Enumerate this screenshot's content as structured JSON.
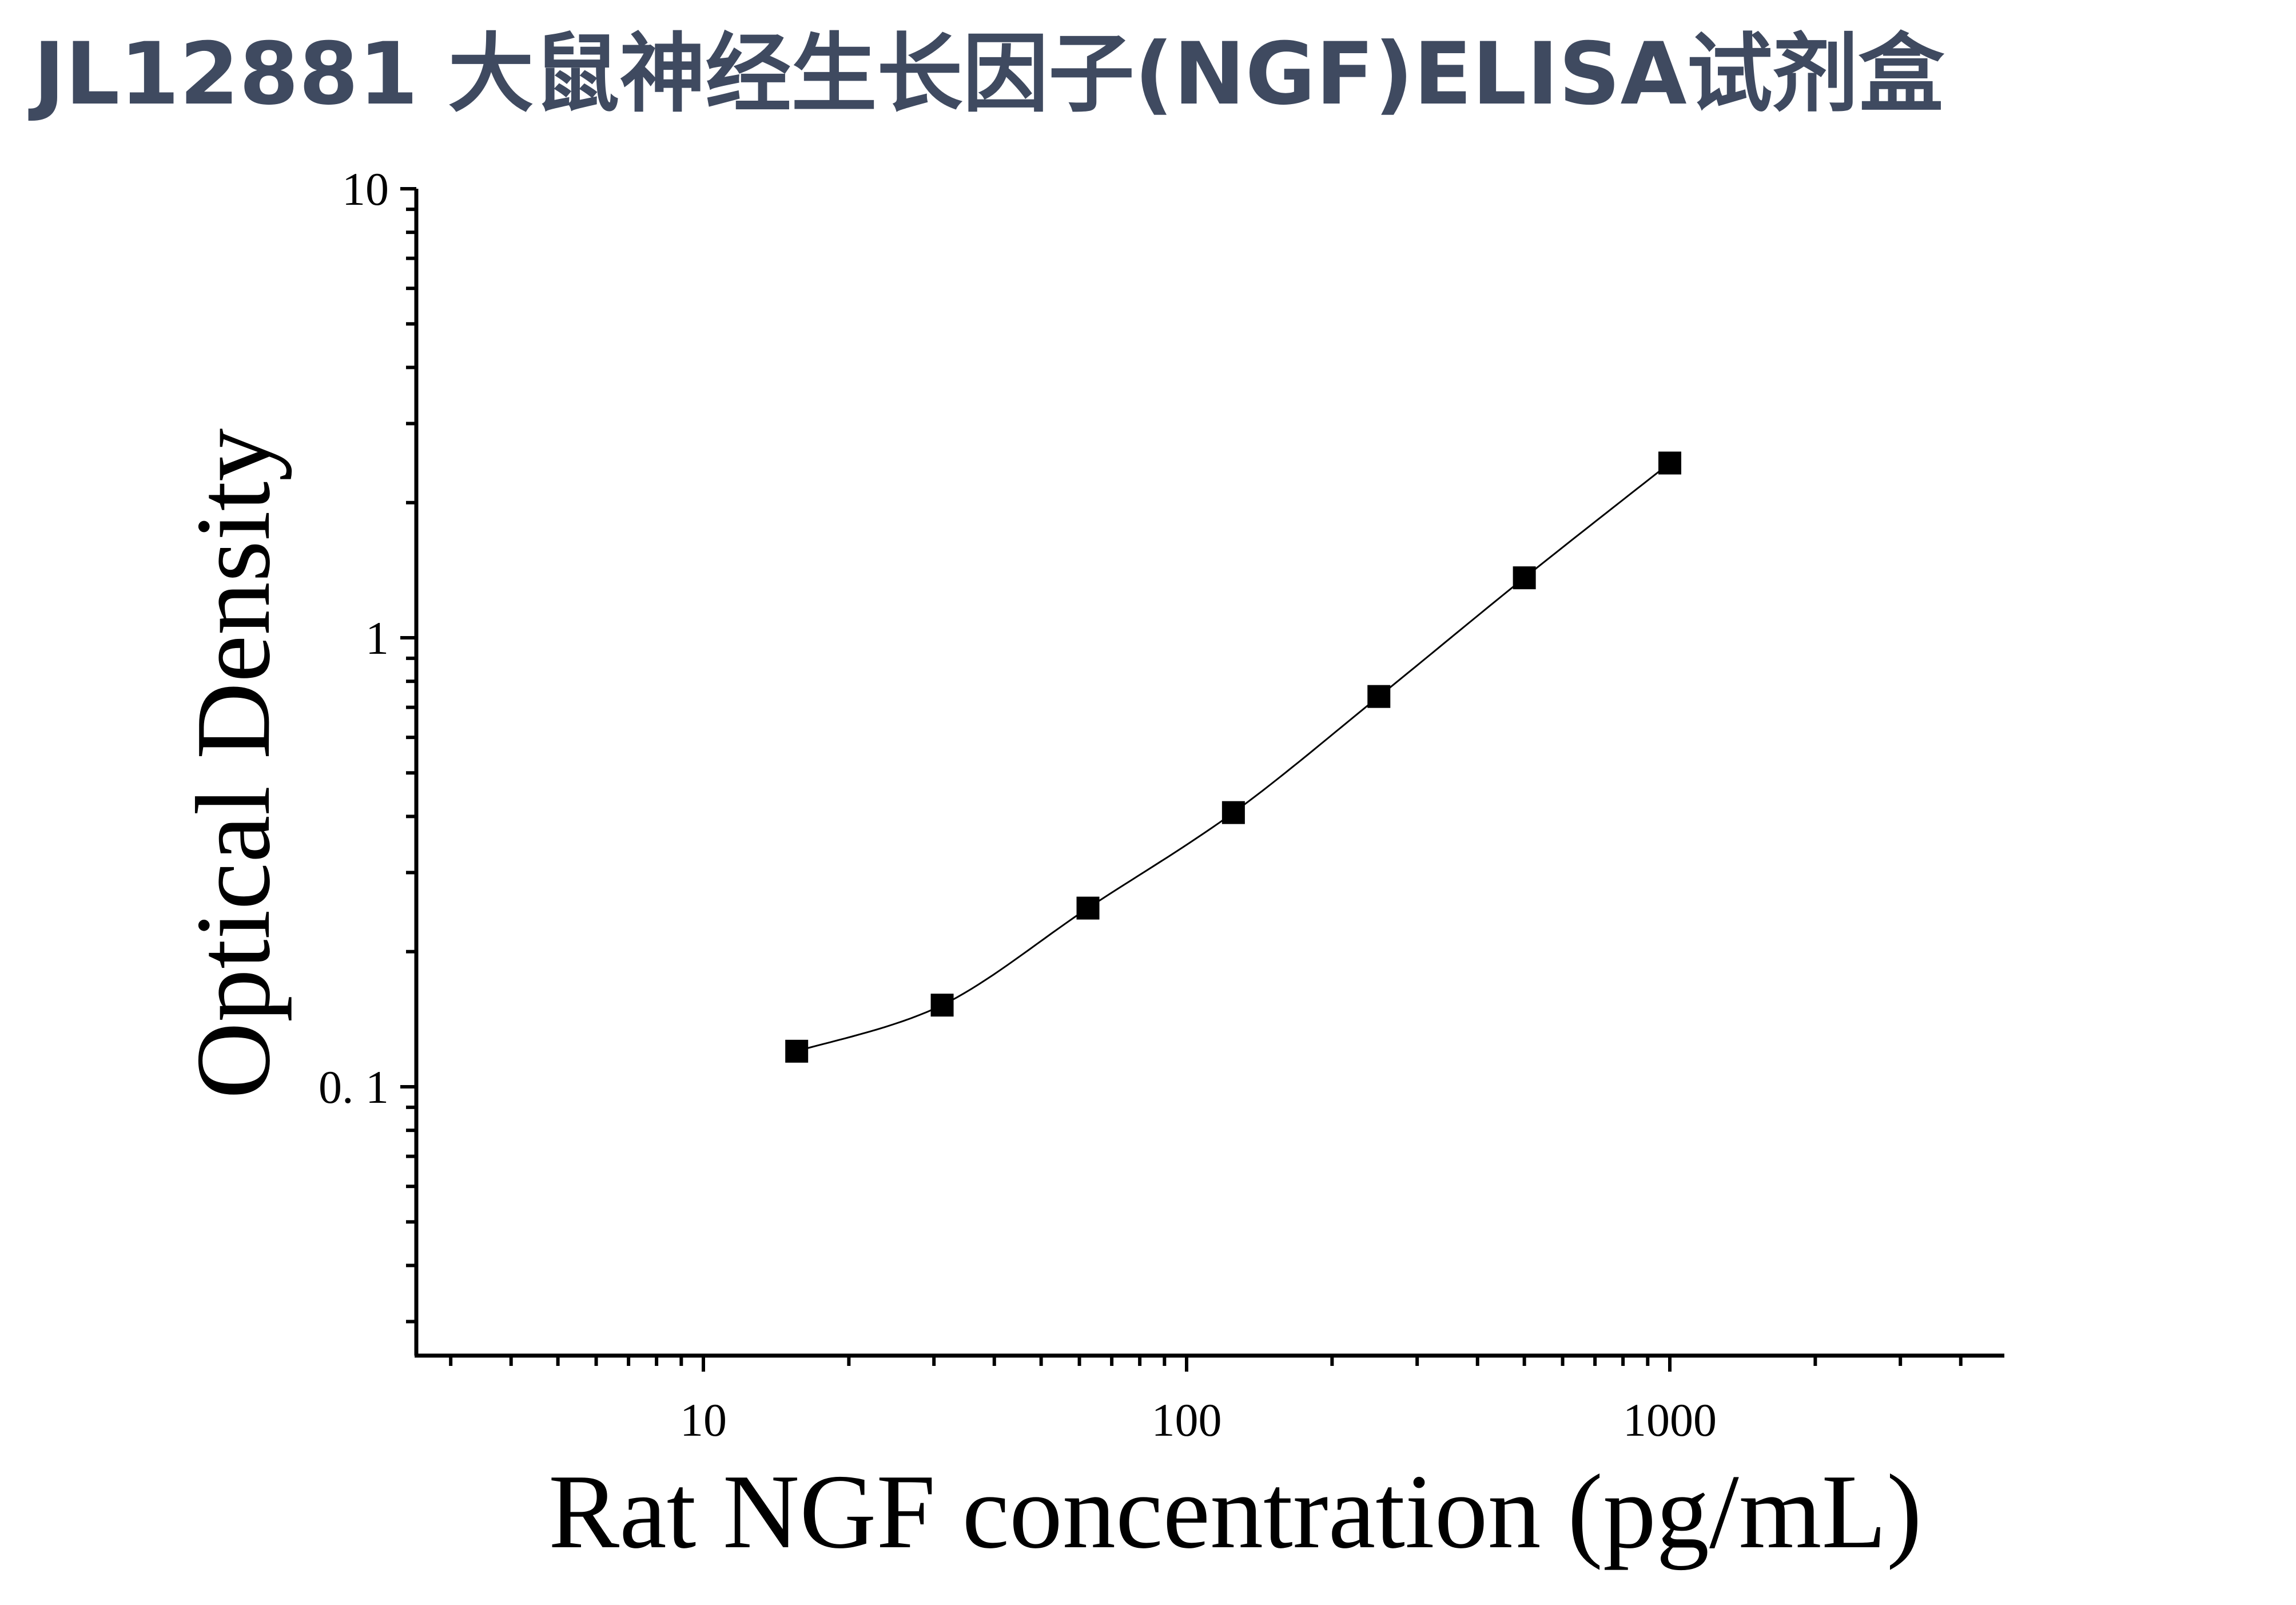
{
  "page": {
    "title": "JL12881 大鼠神经生长因子(NGF)ELISA试剂盒"
  },
  "chart_data": {
    "type": "scatter",
    "xlabel": "Rat NGF concentration (pg/mL)",
    "ylabel": "Optical Density",
    "xscale": "log",
    "yscale": "log",
    "xlim": [
      3,
      5000
    ],
    "ylim": [
      0.03,
      10
    ],
    "x_ticks": [
      {
        "value": 10,
        "label": "10"
      },
      {
        "value": 100,
        "label": "100"
      },
      {
        "value": 1000,
        "label": "1000"
      }
    ],
    "y_ticks": [
      {
        "value": 0.1,
        "label": "0. 1"
      },
      {
        "value": 1,
        "label": "1"
      },
      {
        "value": 10,
        "label": "10"
      }
    ],
    "grid": false,
    "legend": "none",
    "series": [
      {
        "marker": "square",
        "color": "#000000",
        "x": [
          15.6,
          31.2,
          62.5,
          125,
          250,
          500,
          1000
        ],
        "y": [
          0.12,
          0.152,
          0.25,
          0.408,
          0.74,
          1.36,
          2.45
        ]
      }
    ],
    "fit_curve": {
      "color": "#000000"
    }
  }
}
